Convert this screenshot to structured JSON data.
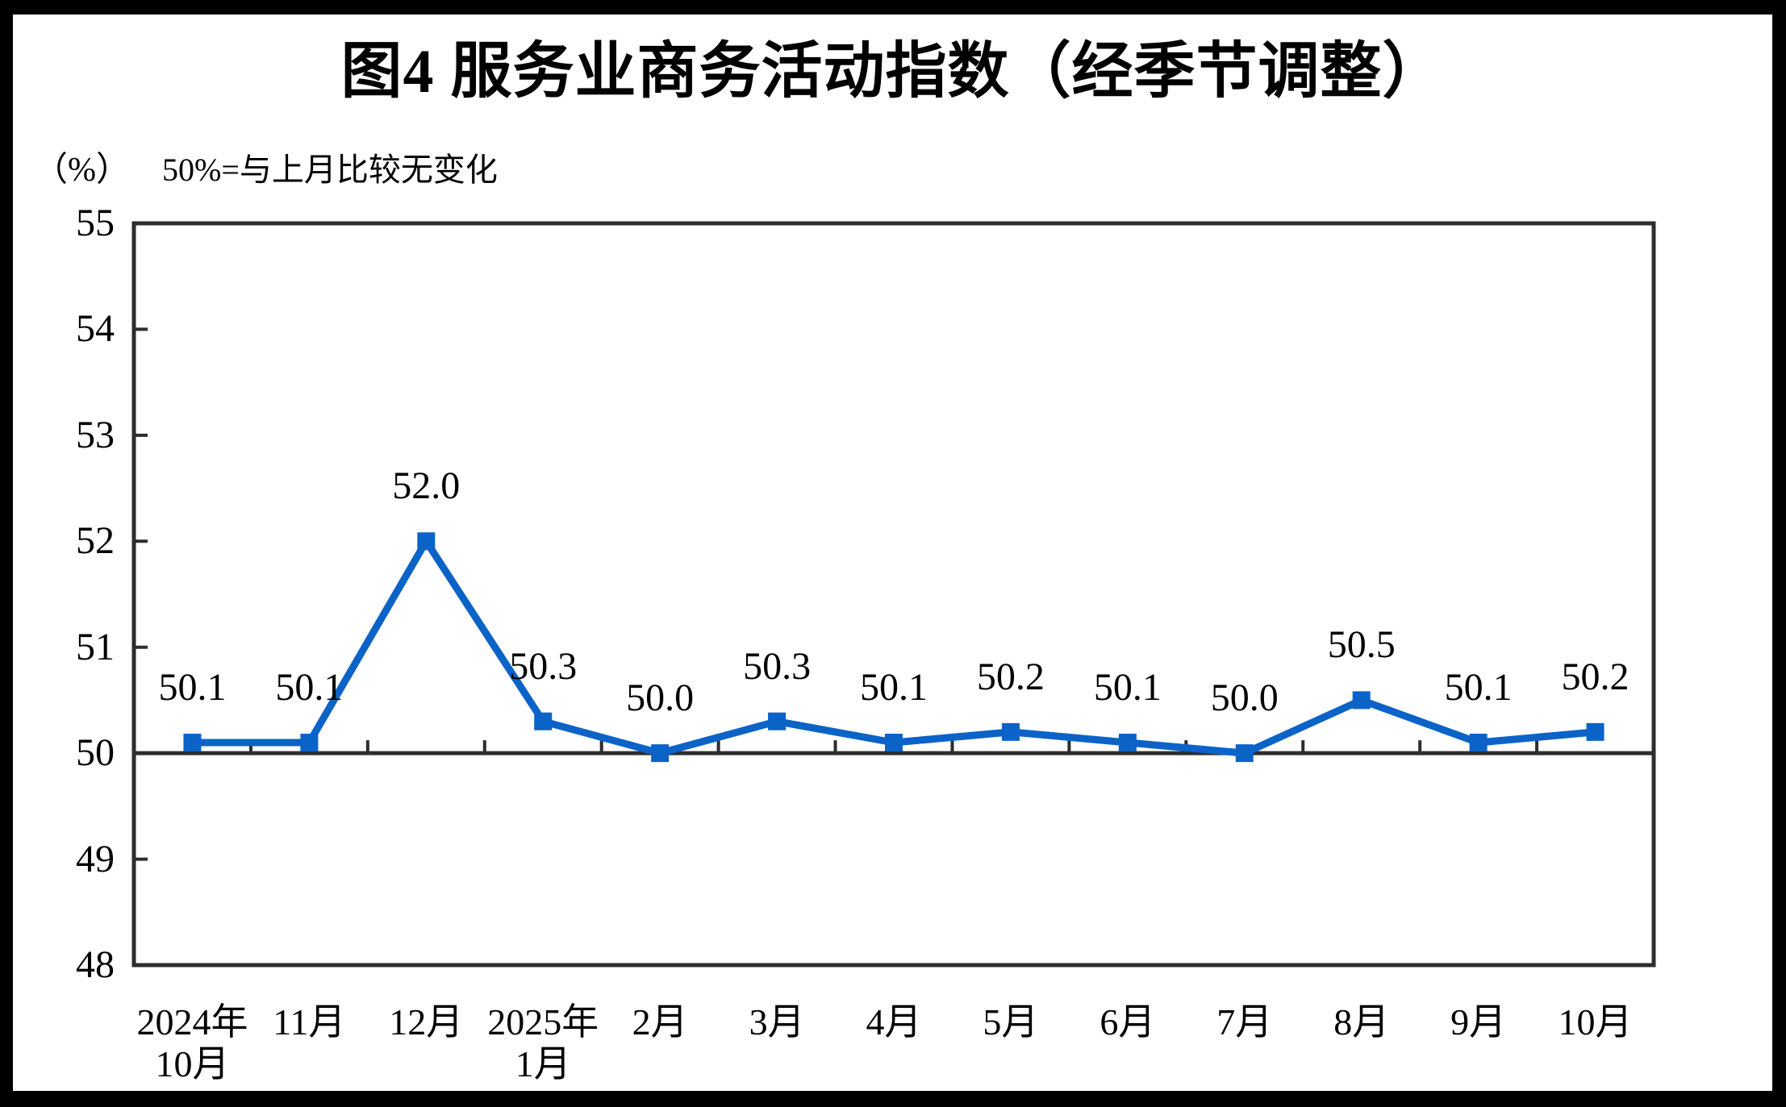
{
  "title": "图4  服务业商务活动指数（经季节调整）",
  "subtitle": {
    "unit": "（%）",
    "note": "50%=与上月比较无变化"
  },
  "chart_data": {
    "type": "line",
    "title": "图4  服务业商务活动指数（经季节调整）",
    "unit_label": "（%）",
    "note": "50%=与上月比较无变化",
    "categories": [
      "2024年\n10月",
      "11月",
      "12月",
      "2025年\n1月",
      "2月",
      "3月",
      "4月",
      "5月",
      "6月",
      "7月",
      "8月",
      "9月",
      "10月"
    ],
    "values": [
      50.1,
      50.1,
      52.0,
      50.3,
      50.0,
      50.3,
      50.1,
      50.2,
      50.1,
      50.0,
      50.5,
      50.1,
      50.2
    ],
    "data_labels": [
      "50.1",
      "50.1",
      "52.0",
      "50.3",
      "50.0",
      "50.3",
      "50.1",
      "50.2",
      "50.1",
      "50.0",
      "50.5",
      "50.1",
      "50.2"
    ],
    "y_ticks": [
      48,
      49,
      50,
      51,
      52,
      53,
      54,
      55
    ],
    "ylim": [
      48,
      55
    ],
    "reference_line": 50,
    "xlabel": "",
    "ylabel": "（%）",
    "legend_position": "none",
    "grid": "off",
    "marker": "square",
    "colors": {
      "line": "#0B63C7",
      "marker": "#0B63C7",
      "axis": "#2d2d2d",
      "text": "#000000",
      "background": "#ffffff",
      "frame": "#000000"
    }
  }
}
